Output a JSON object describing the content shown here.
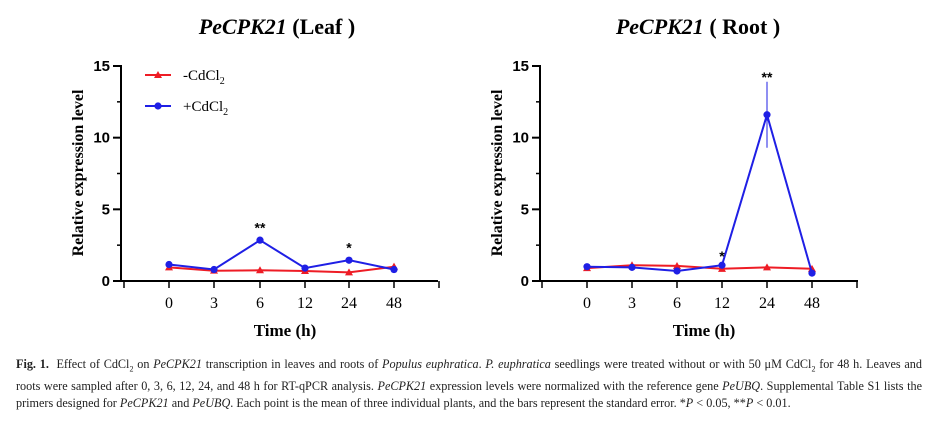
{
  "figure": {
    "charts": [
      {
        "id": "leaf",
        "title_italic": "PeCPK21",
        "title_rest": " (Leaf )",
        "ylabel": "Relative expression level",
        "xlabel": "Time (h)",
        "yticks": [
          "0",
          "5",
          "10",
          "15"
        ],
        "xticks": [
          "0",
          "3",
          "6",
          "12",
          "24",
          "48"
        ],
        "legend": [
          {
            "base": "-CdCl",
            "sub": "2",
            "color": "#ee1c25",
            "marker": "triangle"
          },
          {
            "base": "+CdCl",
            "sub": "2",
            "color": "#1f1fe5",
            "marker": "circle"
          }
        ],
        "annotations": [
          {
            "text": "**",
            "category": "6",
            "y": 3.4
          },
          {
            "text": "*",
            "category": "24",
            "y": 2.0
          }
        ]
      },
      {
        "id": "root",
        "title_italic": "PeCPK21",
        "title_rest": " ( Root )",
        "ylabel": "Relative expression level",
        "xlabel": "Time (h)",
        "yticks": [
          "0",
          "5",
          "10",
          "15"
        ],
        "xticks": [
          "0",
          "3",
          "6",
          "12",
          "24",
          "48"
        ],
        "legend": [],
        "annotations": [
          {
            "text": "*",
            "category": "12",
            "y": 1.4
          },
          {
            "text": "**",
            "category": "24",
            "y": 13.9
          }
        ]
      }
    ]
  },
  "chart_data": [
    {
      "type": "line",
      "title": "PeCPK21 (Leaf )",
      "xlabel": "Time (h)",
      "ylabel": "Relative expression level",
      "categories": [
        "0",
        "3",
        "6",
        "12",
        "24",
        "48"
      ],
      "ylim": [
        0,
        15
      ],
      "legend_position": "top-left",
      "series": [
        {
          "name": "-CdCl2",
          "color": "#ee1c25",
          "marker": "triangle",
          "values": [
            0.95,
            0.72,
            0.75,
            0.7,
            0.6,
            1.0
          ],
          "errors": [
            0,
            0,
            0,
            0,
            0,
            0
          ]
        },
        {
          "name": "+CdCl2",
          "color": "#1f1fe5",
          "marker": "circle",
          "values": [
            1.15,
            0.8,
            2.85,
            0.9,
            1.45,
            0.8
          ],
          "errors": [
            0,
            0,
            0.2,
            0,
            0.15,
            0
          ]
        }
      ]
    },
    {
      "type": "line",
      "title": "PeCPK21 ( Root )",
      "xlabel": "Time (h)",
      "ylabel": "Relative expression level",
      "categories": [
        "0",
        "3",
        "6",
        "12",
        "24",
        "48"
      ],
      "ylim": [
        0,
        15
      ],
      "series": [
        {
          "name": "-CdCl2",
          "color": "#ee1c25",
          "marker": "triangle",
          "values": [
            0.9,
            1.1,
            1.05,
            0.85,
            0.95,
            0.85
          ],
          "errors": [
            0,
            0,
            0,
            0,
            0,
            0
          ]
        },
        {
          "name": "+CdCl2",
          "color": "#1f1fe5",
          "marker": "circle",
          "values": [
            1.0,
            0.95,
            0.7,
            1.1,
            11.6,
            0.55
          ],
          "errors": [
            0,
            0,
            0,
            0,
            2.3,
            0
          ]
        }
      ]
    }
  ],
  "caption": {
    "label": "Fig. 1.",
    "t1": "Effect of CdCl",
    "t1_sub": "2",
    "t2": " on ",
    "gene": "PeCPK21",
    "t3": " transcription in leaves and roots of ",
    "species": "Populus euphratica",
    "t4": ". ",
    "species_short": "P. euphratica",
    "t5": " seedlings were treated without or with 50 μM CdCl",
    "t5_sub": "2",
    "t6": " for 48 h. Leaves and roots were sampled after 0, 3, 6, 12, 24, and 48 h for RT-qPCR analysis. ",
    "gene2": "PeCPK21",
    "t7": " expression levels were normalized with the reference gene ",
    "ref_gene": "PeUBQ",
    "t8": ". Supplemental Table S1 lists the primers designed for ",
    "gene3": "PeCPK21",
    "t9": " and ",
    "ref_gene2": "PeUBQ",
    "t10": ". Each point is the mean of three individual plants, and the bars represent the standard error. *",
    "p1": "P",
    "t11": " < 0.05, **",
    "p2": "P",
    "t12": " < 0.01."
  }
}
